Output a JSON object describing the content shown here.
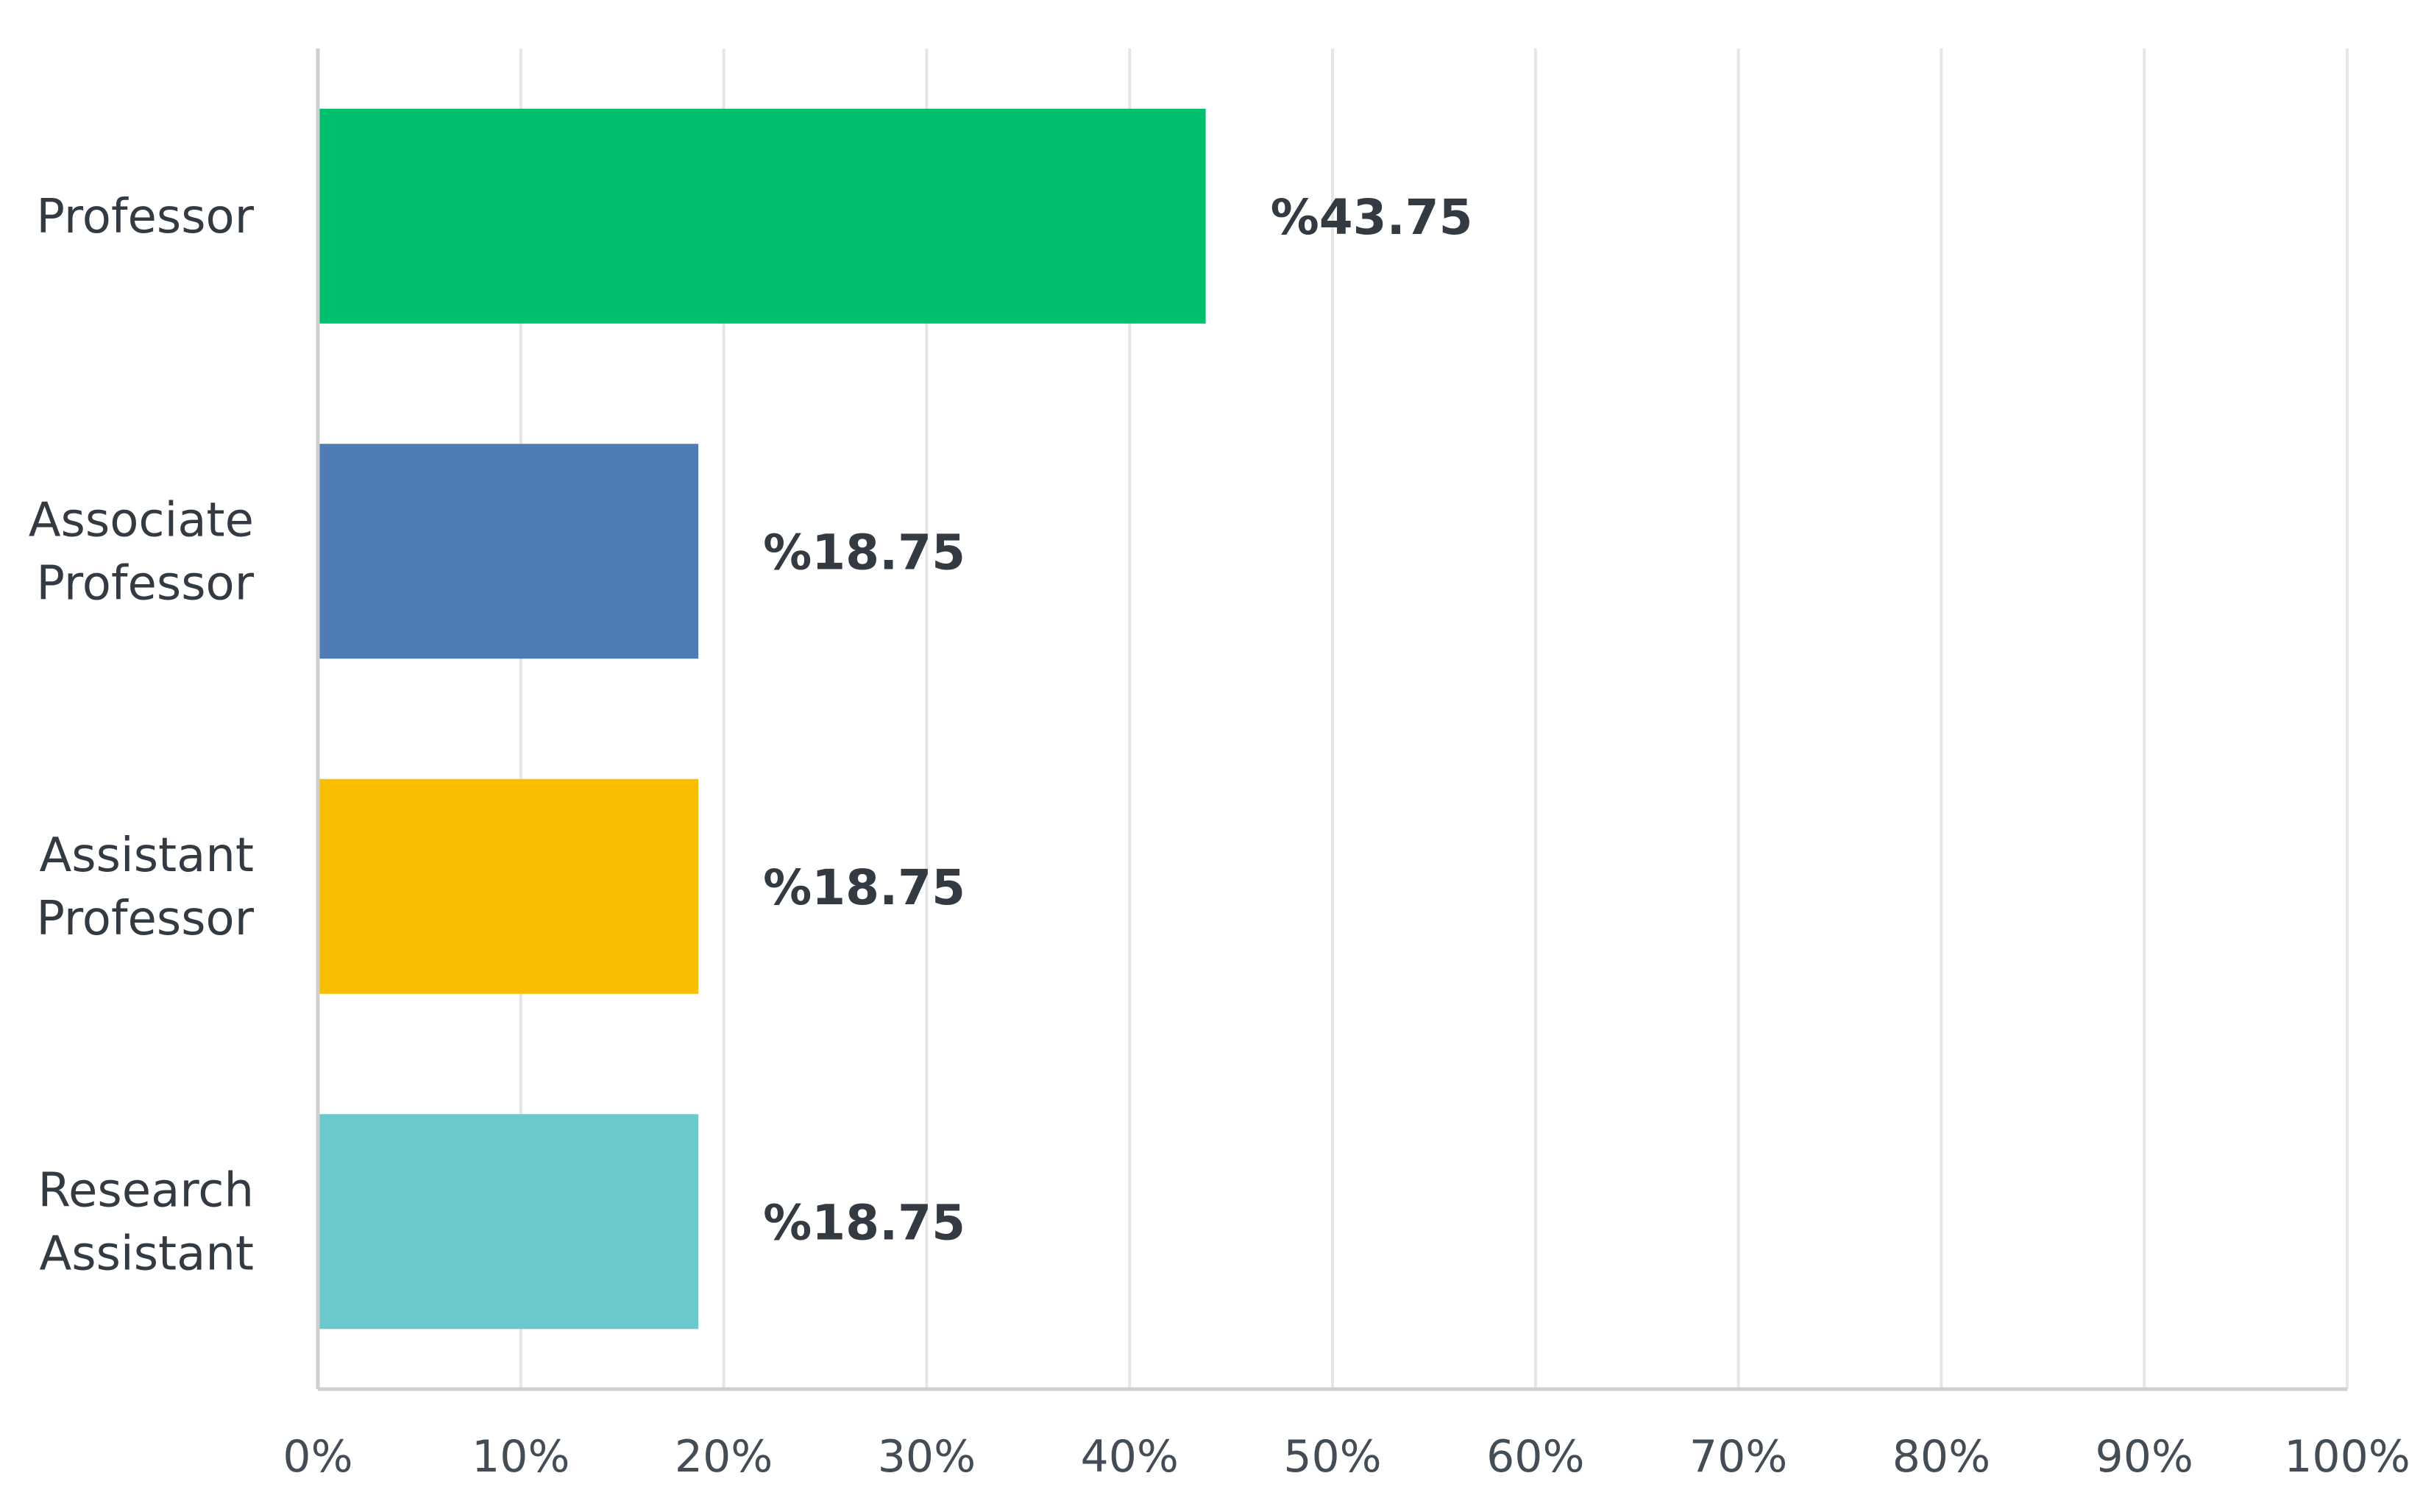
{
  "chart_data": {
    "type": "bar",
    "orientation": "horizontal",
    "categories": [
      [
        "Professor"
      ],
      [
        "Associate",
        "Professor"
      ],
      [
        "Assistant",
        "Professor"
      ],
      [
        "Research",
        "Assistant"
      ]
    ],
    "values": [
      43.75,
      18.75,
      18.75,
      18.75
    ],
    "value_labels": [
      "%43.75",
      "%18.75",
      "%18.75",
      "%18.75"
    ],
    "colors": [
      "#00bf6f",
      "#507cb6",
      "#f9be00",
      "#6bc8cd"
    ],
    "xlim": [
      0,
      100
    ],
    "x_ticks": [
      0,
      10,
      20,
      30,
      40,
      50,
      60,
      70,
      80,
      90,
      100
    ],
    "x_tick_labels": [
      "0%",
      "10%",
      "20%",
      "30%",
      "40%",
      "50%",
      "60%",
      "70%",
      "80%",
      "90%",
      "100%"
    ],
    "grid": true,
    "title": "",
    "xlabel": "",
    "ylabel": ""
  }
}
